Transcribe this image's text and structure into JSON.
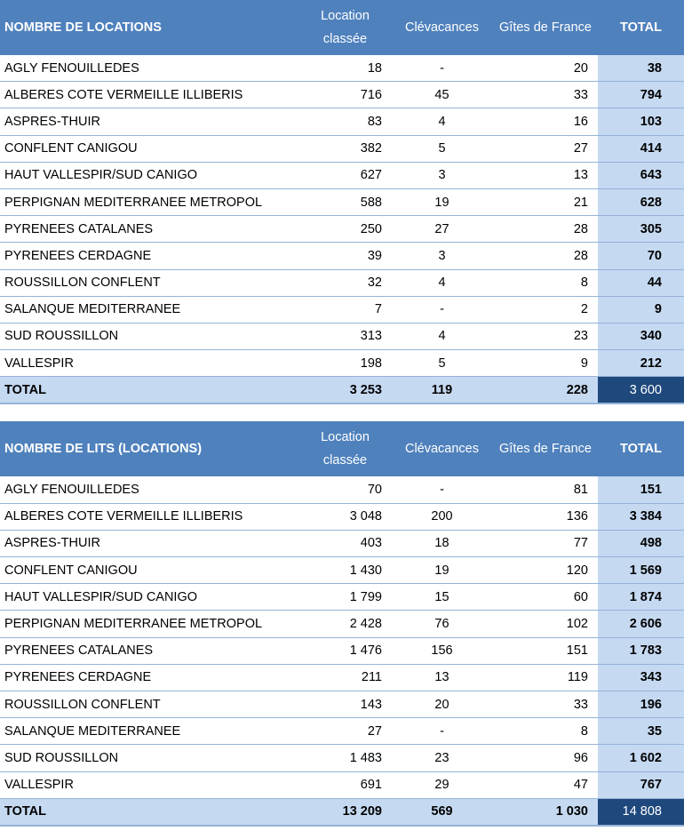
{
  "columns": [
    "Location classée",
    "Clévacances",
    "Gîtes de France",
    "TOTAL"
  ],
  "tables": [
    {
      "title": "NOMBRE DE LOCATIONS",
      "rows": [
        [
          "AGLY FENOUILLEDES",
          "18",
          "-",
          "20",
          "38"
        ],
        [
          "ALBERES COTE VERMEILLE ILLIBERIS",
          "716",
          "45",
          "33",
          "794"
        ],
        [
          "ASPRES-THUIR",
          "83",
          "4",
          "16",
          "103"
        ],
        [
          "CONFLENT CANIGOU",
          "382",
          "5",
          "27",
          "414"
        ],
        [
          "HAUT VALLESPIR/SUD CANIGO",
          "627",
          "3",
          "13",
          "643"
        ],
        [
          "PERPIGNAN MEDITERRANEE METROPOL",
          "588",
          "19",
          "21",
          "628"
        ],
        [
          "PYRENEES CATALANES",
          "250",
          "27",
          "28",
          "305"
        ],
        [
          "PYRENEES CERDAGNE",
          "39",
          "3",
          "28",
          "70"
        ],
        [
          "ROUSSILLON CONFLENT",
          "32",
          "4",
          "8",
          "44"
        ],
        [
          "SALANQUE MEDITERRANEE",
          "7",
          "-",
          "2",
          "9"
        ],
        [
          "SUD ROUSSILLON",
          "313",
          "4",
          "23",
          "340"
        ],
        [
          "VALLESPIR",
          "198",
          "5",
          "9",
          "212"
        ]
      ],
      "total": [
        "TOTAL",
        "3 253",
        "119",
        "228",
        "3 600"
      ]
    },
    {
      "title": "NOMBRE DE LITS (LOCATIONS)",
      "rows": [
        [
          "AGLY FENOUILLEDES",
          "70",
          "-",
          "81",
          "151"
        ],
        [
          "ALBERES COTE VERMEILLE ILLIBERIS",
          "3 048",
          "200",
          "136",
          "3 384"
        ],
        [
          "ASPRES-THUIR",
          "403",
          "18",
          "77",
          "498"
        ],
        [
          "CONFLENT CANIGOU",
          "1 430",
          "19",
          "120",
          "1 569"
        ],
        [
          "HAUT VALLESPIR/SUD CANIGO",
          "1 799",
          "15",
          "60",
          "1 874"
        ],
        [
          "PERPIGNAN MEDITERRANEE METROPOL",
          "2 428",
          "76",
          "102",
          "2 606"
        ],
        [
          "PYRENEES CATALANES",
          "1 476",
          "156",
          "151",
          "1 783"
        ],
        [
          "PYRENEES CERDAGNE",
          "211",
          "13",
          "119",
          "343"
        ],
        [
          "ROUSSILLON CONFLENT",
          "143",
          "20",
          "33",
          "196"
        ],
        [
          "SALANQUE MEDITERRANEE",
          "27",
          "-",
          "8",
          "35"
        ],
        [
          "SUD ROUSSILLON",
          "1 483",
          "23",
          "96",
          "1 602"
        ],
        [
          "VALLESPIR",
          "691",
          "29",
          "47",
          "767"
        ]
      ],
      "total": [
        "TOTAL",
        "13 209",
        "569",
        "1 030",
        "14 808"
      ]
    }
  ]
}
